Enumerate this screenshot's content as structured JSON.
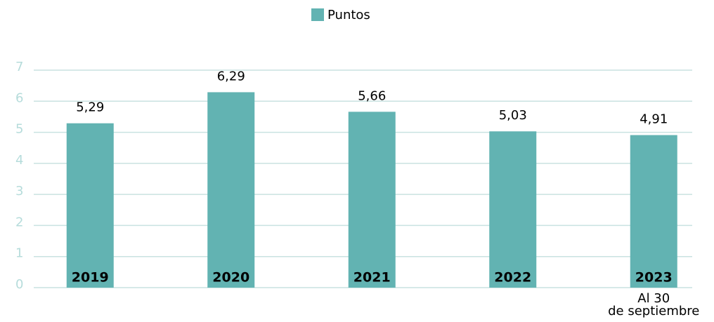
{
  "chart_data": {
    "type": "bar",
    "legend": "Puntos",
    "categories": [
      "2019",
      "2020",
      "2021",
      "2022",
      "2023"
    ],
    "values": [
      5.29,
      6.29,
      5.66,
      5.03,
      4.91
    ],
    "value_labels": [
      "5,29",
      "6,29",
      "5,66",
      "5,03",
      "4,91"
    ],
    "color": "#62b3b2",
    "ylim": [
      0,
      7
    ],
    "yticks": [
      0,
      1,
      2,
      3,
      4,
      5,
      6,
      7
    ],
    "grid": true,
    "annotation": [
      "Al 30",
      "de septiembre"
    ]
  }
}
